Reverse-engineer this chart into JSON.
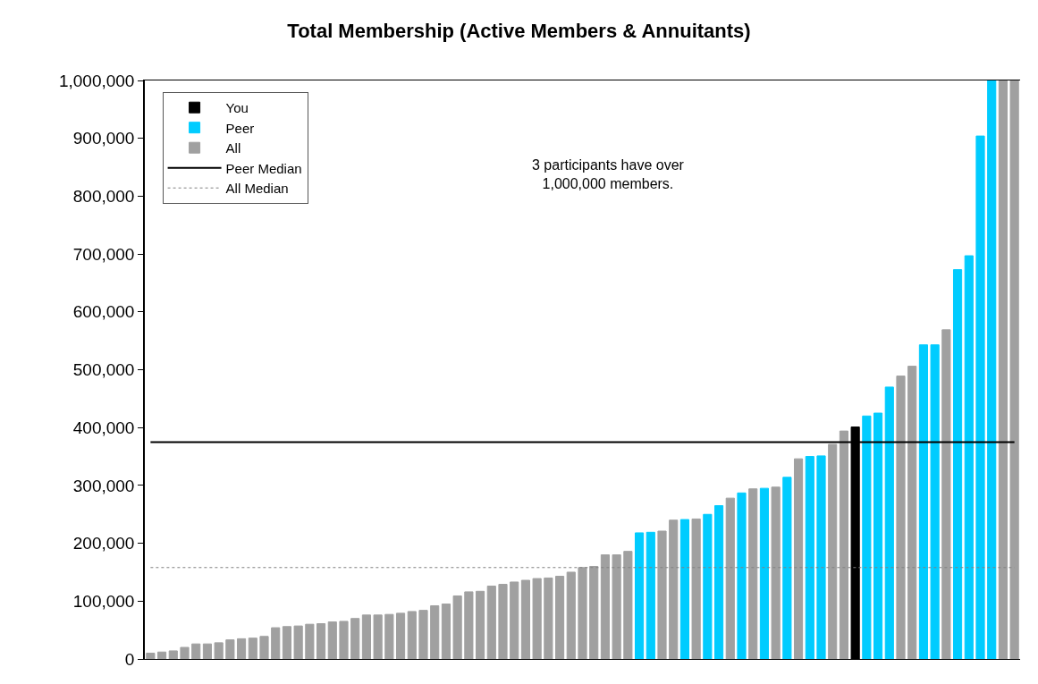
{
  "chart_data": {
    "type": "bar",
    "title": "Total Membership (Active Members & Annuitants)",
    "categories": [
      null,
      null,
      null,
      null,
      null,
      null,
      null,
      null,
      null,
      null,
      null,
      null,
      null,
      null,
      null,
      null,
      null,
      null,
      null,
      null,
      null,
      null,
      null,
      null,
      null,
      null,
      null,
      null,
      null,
      null,
      null,
      null,
      null,
      null,
      null,
      null,
      null,
      null,
      null,
      null,
      null,
      null,
      null,
      null,
      null,
      null,
      null,
      null,
      null,
      null,
      null,
      null,
      null,
      null,
      null,
      null,
      null,
      null,
      null,
      null,
      null,
      null,
      null,
      null,
      null,
      null,
      null,
      null,
      null,
      null,
      null,
      null,
      null,
      null,
      null,
      null,
      null
    ],
    "series": [
      {
        "name": "You",
        "color": "#000000",
        "values": [
          null,
          null,
          null,
          null,
          null,
          null,
          null,
          null,
          null,
          null,
          null,
          null,
          null,
          null,
          null,
          null,
          null,
          null,
          null,
          null,
          null,
          null,
          null,
          null,
          null,
          null,
          null,
          null,
          null,
          null,
          null,
          null,
          null,
          null,
          null,
          null,
          null,
          null,
          null,
          null,
          null,
          null,
          null,
          null,
          null,
          null,
          null,
          null,
          null,
          null,
          null,
          null,
          null,
          null,
          null,
          null,
          null,
          null,
          null,
          null,
          null,
          null,
          401000,
          null,
          null,
          null,
          null,
          null,
          null,
          null,
          null,
          null,
          null,
          null,
          null,
          null,
          null
        ]
      },
      {
        "name": "Peer",
        "color": "#00ccff",
        "values": [
          null,
          null,
          null,
          null,
          null,
          null,
          null,
          null,
          null,
          null,
          null,
          null,
          null,
          null,
          null,
          null,
          null,
          null,
          null,
          null,
          null,
          null,
          null,
          null,
          null,
          null,
          null,
          null,
          null,
          null,
          null,
          null,
          null,
          null,
          null,
          null,
          null,
          null,
          null,
          null,
          null,
          null,
          null,
          218000,
          219000,
          null,
          null,
          241000,
          null,
          250000,
          265000,
          null,
          287000,
          null,
          295000,
          null,
          314000,
          null,
          350000,
          351000,
          null,
          null,
          null,
          420000,
          425000,
          470000,
          null,
          null,
          543000,
          543000,
          null,
          673000,
          697000,
          904000,
          1000000,
          null,
          null
        ]
      },
      {
        "name": "All",
        "color": "#a0a0a0",
        "values": [
          10000,
          12000,
          14000,
          20000,
          26000,
          26000,
          28000,
          33000,
          35000,
          36000,
          39000,
          54000,
          56000,
          57000,
          60000,
          61000,
          64000,
          65000,
          70000,
          76000,
          76000,
          77000,
          79000,
          82000,
          84000,
          92000,
          95000,
          109000,
          116000,
          117000,
          126000,
          129000,
          133000,
          136000,
          139000,
          140000,
          143000,
          150000,
          158000,
          160000,
          180000,
          180000,
          186000,
          null,
          null,
          221000,
          240000,
          null,
          242000,
          null,
          null,
          278000,
          null,
          294000,
          null,
          297000,
          null,
          346000,
          null,
          null,
          371000,
          394000,
          null,
          null,
          null,
          null,
          489000,
          506000,
          null,
          null,
          569000,
          null,
          null,
          null,
          null,
          1000000,
          1000000
        ]
      }
    ],
    "ref_lines": [
      {
        "axis": "y",
        "value": 375000,
        "label": "Peer Median",
        "color": "#000000",
        "line_style": "solid"
      },
      {
        "axis": "y",
        "value": 158000,
        "label": "All Median",
        "color": "#808080",
        "line_style": "dotted"
      }
    ],
    "annotations": [
      "3 participants have over\n1,000,000 members."
    ],
    "ylim": [
      0,
      1000000
    ],
    "yticks": [
      {
        "value": 0,
        "label": "0"
      },
      {
        "value": 100000,
        "label": "100,000"
      },
      {
        "value": 200000,
        "label": "200,000"
      },
      {
        "value": 300000,
        "label": "300,000"
      },
      {
        "value": 400000,
        "label": "400,000"
      },
      {
        "value": 500000,
        "label": "500,000"
      },
      {
        "value": 600000,
        "label": "600,000"
      },
      {
        "value": 700000,
        "label": "700,000"
      },
      {
        "value": 800000,
        "label": "800,000"
      },
      {
        "value": 900000,
        "label": "900,000"
      },
      {
        "value": 1000000,
        "label": "1,000,000"
      }
    ],
    "tick_labels": "y",
    "grid": false,
    "legend": "top left"
  }
}
